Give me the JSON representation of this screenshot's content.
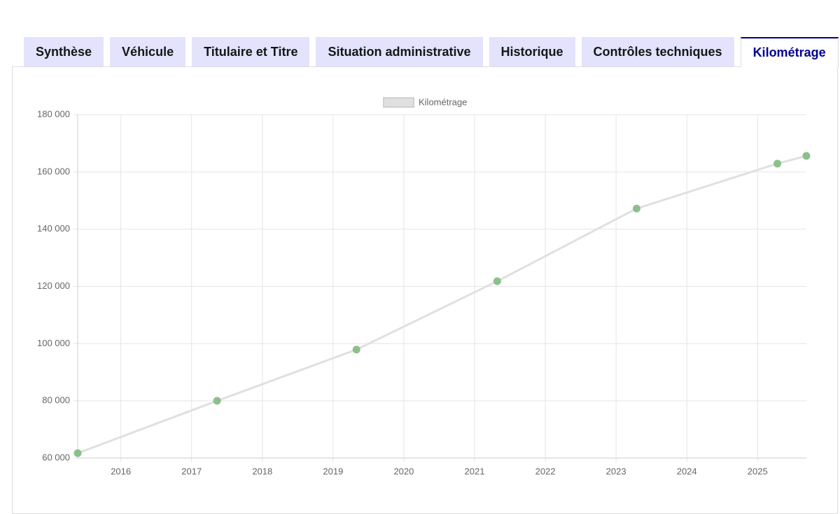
{
  "tabs": [
    {
      "label": "Synthèse",
      "active": false
    },
    {
      "label": "Véhicule",
      "active": false
    },
    {
      "label": "Titulaire et Titre",
      "active": false
    },
    {
      "label": "Situation administrative",
      "active": false
    },
    {
      "label": "Historique",
      "active": false
    },
    {
      "label": "Contrôles techniques",
      "active": false
    },
    {
      "label": "Kilométrage",
      "active": true
    }
  ],
  "chart_data": {
    "type": "line",
    "x": [
      2015.39,
      2017.36,
      2019.33,
      2021.32,
      2023.29,
      2025.28,
      2025.69
    ],
    "series": [
      {
        "name": "Kilométrage",
        "color": "#e0e0e0",
        "point_color": "#8dbf8b",
        "values": [
          61700,
          80000,
          97900,
          121800,
          147200,
          162900,
          165600
        ]
      }
    ],
    "xlim": [
      2015.39,
      2025.69
    ],
    "xticks": [
      2016,
      2017,
      2018,
      2019,
      2020,
      2021,
      2022,
      2023,
      2024,
      2025
    ],
    "ylim": [
      60000,
      180000
    ],
    "yticks": [
      {
        "value": 60000,
        "label": "60 000"
      },
      {
        "value": 80000,
        "label": "80 000"
      },
      {
        "value": 100000,
        "label": "100 000"
      },
      {
        "value": 120000,
        "label": "120 000"
      },
      {
        "value": 140000,
        "label": "140 000"
      },
      {
        "value": 160000,
        "label": "160 000"
      },
      {
        "value": 180000,
        "label": "180 000"
      }
    ],
    "grid": true,
    "legend": "top"
  }
}
